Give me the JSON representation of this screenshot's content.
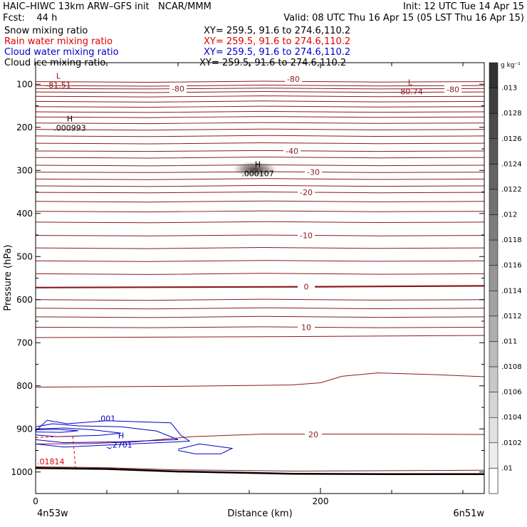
{
  "header": {
    "title_left": "HAIC–HIWC 13km ARW–GFS init   NCAR/MMM",
    "init": "Init: 12 UTC Tue 14 Apr 15",
    "fcst": "Fcst:    44 h",
    "valid": "Valid: 08 UTC Thu 16 Apr 15 (05 LST Thu 16 Apr 15)",
    "rows": [
      {
        "name": "Snow mixing ratio",
        "xy": "XY= 259.5, 91.6 to 274.6,110.2",
        "color": "#000000"
      },
      {
        "name": "Rain water mixing ratio",
        "xy": "XY= 259.5, 91.6 to 274.6,110.2",
        "color": "#e00000"
      },
      {
        "name": "Cloud water mixing ratio",
        "xy": "XY= 259.5, 91.6 to 274.6,110.2",
        "color": "#0000cc"
      },
      {
        "name": "Cloud ice mixing ratio",
        "xy": "XY= 259.5, 91.6 to 274.6,110.2",
        "color": "#000000"
      }
    ]
  },
  "chart_data": {
    "type": "cross-section contour",
    "xlabel": "Distance (km)",
    "ylabel": "Pressure (hPa)",
    "xlim": [
      0,
      315
    ],
    "ylim": [
      1050,
      50
    ],
    "x_ticks": [
      "0",
      "200"
    ],
    "x_tick_values": [
      0,
      200
    ],
    "x_end_labels": {
      "left": "4n53w",
      "right": "6n51w"
    },
    "y_ticks": [
      100,
      200,
      300,
      400,
      500,
      600,
      700,
      800,
      900,
      1000
    ],
    "temperature_contours": [
      {
        "level": "-80",
        "pressure": 110
      },
      {
        "level": "-40",
        "pressure": 255
      },
      {
        "level": "-30",
        "pressure": 304
      },
      {
        "level": "-20",
        "pressure": 351
      },
      {
        "level": "-10",
        "pressure": 451
      },
      {
        "level": "0",
        "pressure": 570
      },
      {
        "level": "10",
        "pressure": 664
      },
      {
        "level": "20",
        "pressure": 923
      }
    ],
    "extrema": [
      {
        "type": "L",
        "value": "-81.51",
        "x": 16,
        "p": 97
      },
      {
        "type": "L",
        "value": "-80.74",
        "x": 263,
        "p": 112
      },
      {
        "type": "H",
        "value": ".000993",
        "x": 24,
        "p": 196
      },
      {
        "type": "H",
        "value": ".000107",
        "x": 156,
        "p": 302
      },
      {
        "type": "H",
        "value": ".2701",
        "x": 60,
        "p": 932
      }
    ],
    "cloud_water_labels": [
      ".001"
    ],
    "rain_labels": [
      ".01814"
    ],
    "colorbar": {
      "unit": "g kg⁻¹",
      "labels": [
        ".013",
        ".0128",
        ".0126",
        ".0124",
        ".0122",
        ".012",
        ".0118",
        ".0116",
        ".0114",
        ".0112",
        ".011",
        ".0108",
        ".0106",
        ".0104",
        ".0102",
        ".01"
      ]
    }
  }
}
